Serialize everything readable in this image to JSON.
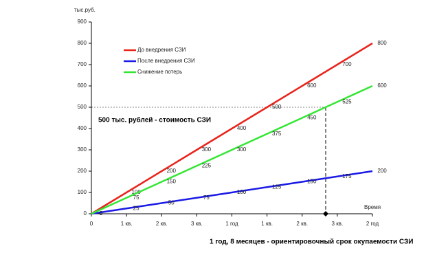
{
  "chart_data": {
    "type": "line",
    "y_label": "тыс.руб.",
    "x_label": "Время",
    "x": [
      0,
      1,
      2,
      3,
      4,
      5,
      6,
      7,
      8
    ],
    "xlim": [
      0,
      8
    ],
    "xticks": [
      0,
      {
        "value": 1,
        "label": "1 кв."
      },
      {
        "value": 2,
        "label": "2 кв."
      },
      {
        "value": 3,
        "label": "3 кв."
      },
      {
        "value": 4,
        "label": "1 год"
      },
      {
        "value": 5,
        "label": "1 кв."
      },
      {
        "value": 6,
        "label": "2 кв."
      },
      {
        "value": 7,
        "label": "3 кв."
      },
      {
        "value": 8,
        "label": "2 год"
      }
    ],
    "ylim": [
      0,
      900
    ],
    "yticks": [
      0,
      100,
      200,
      300,
      400,
      500,
      600,
      700,
      800,
      900
    ],
    "series": [
      {
        "name": "До внедрения СЗИ",
        "color": "#e8241b",
        "values": [
          0,
          100,
          200,
          300,
          400,
          500,
          600,
          700,
          800
        ]
      },
      {
        "name": "После внедрения СЗИ",
        "color": "#1a1ae6",
        "values": [
          0,
          25,
          50,
          75,
          100,
          125,
          150,
          175,
          200
        ]
      },
      {
        "name": "Снижение потерь",
        "color": "#33e633",
        "values": [
          0,
          75,
          150,
          225,
          300,
          375,
          450,
          525,
          600
        ]
      }
    ],
    "annotations": [
      {
        "text": "500 тыс. рублей - стоимость СЗИ",
        "y": 500
      },
      {
        "text": "1 год, 8 месяцев - ориентировочный срок окупаемости СЗИ",
        "x": 6.67
      }
    ]
  }
}
